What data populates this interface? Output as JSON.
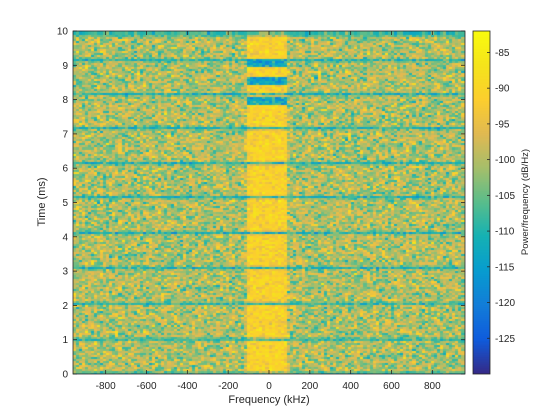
{
  "chart_data": {
    "type": "heatmap",
    "title": "",
    "xlabel": "Frequency (kHz)",
    "ylabel": "Time (ms)",
    "colorbar_label": "Power/frequency (dB/Hz)",
    "xlim": [
      -960,
      960
    ],
    "ylim": [
      0,
      10
    ],
    "xticks": [
      -800,
      -600,
      -400,
      -200,
      0,
      200,
      400,
      600,
      800
    ],
    "yticks": [
      0,
      1,
      2,
      3,
      4,
      5,
      6,
      7,
      8,
      9,
      10
    ],
    "clim": [
      -130,
      -82
    ],
    "cticks": [
      -125,
      -120,
      -115,
      -110,
      -105,
      -100,
      -95,
      -90,
      -85
    ],
    "colormap": "parula",
    "grid": false,
    "freq_bins": 128,
    "time_bins": 170,
    "background_level_db": -100,
    "noise_spread_db": 5,
    "central_band": {
      "freq_range": [
        -100,
        90
      ],
      "level_db": -91
    },
    "low_power_bands_ms": [
      0.05,
      1.05,
      2.1,
      3.15,
      4.15,
      5.2,
      6.2,
      7.2,
      8.2,
      9.2,
      9.95
    ],
    "low_power_band_level_db": -111,
    "central_band_notches_ms": [
      8.0,
      8.6,
      9.1
    ]
  }
}
